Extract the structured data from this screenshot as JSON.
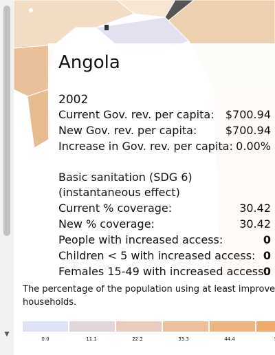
{
  "tooltip": {
    "country": "Angola",
    "year": "2002",
    "gov_rows": [
      {
        "label": "Current Gov. rev. per capita:",
        "value": "$700.94"
      },
      {
        "label": "New Gov. rev. per capita:",
        "value": "$700.94"
      },
      {
        "label": "Increase in Gov. rev. per capita:",
        "value": "0.00%"
      }
    ],
    "sdg_title": "Basic sanitation (SDG 6)",
    "sdg_subtitle": "(instantaneous effect)",
    "sdg_rows": [
      {
        "label": "Current % coverage:",
        "value": "30.42"
      },
      {
        "label": "New % coverage:",
        "value": "30.42"
      },
      {
        "label": "People with increased access:",
        "value": "0"
      },
      {
        "label": "Children < 5 with increased access:",
        "value": "0"
      },
      {
        "label": "Females 15-49 with increased access:",
        "value": "0"
      }
    ]
  },
  "description": {
    "line1": "The percentage of the population using at least improve",
    "line2": "households."
  },
  "legend": {
    "ticks": [
      "0.0",
      "11.1",
      "22.2",
      "33.3",
      "44.4",
      "5"
    ],
    "colors": [
      "#dde3f5",
      "#e2d6dd",
      "#e9ccbe",
      "#edc09d",
      "#f0b47e",
      "#f2aa68"
    ]
  },
  "colors": {
    "map_light": "#f3dcc4",
    "map_mid": "#e9c09a",
    "map_blue": "#dde0ef",
    "map_dark": "#555555"
  }
}
